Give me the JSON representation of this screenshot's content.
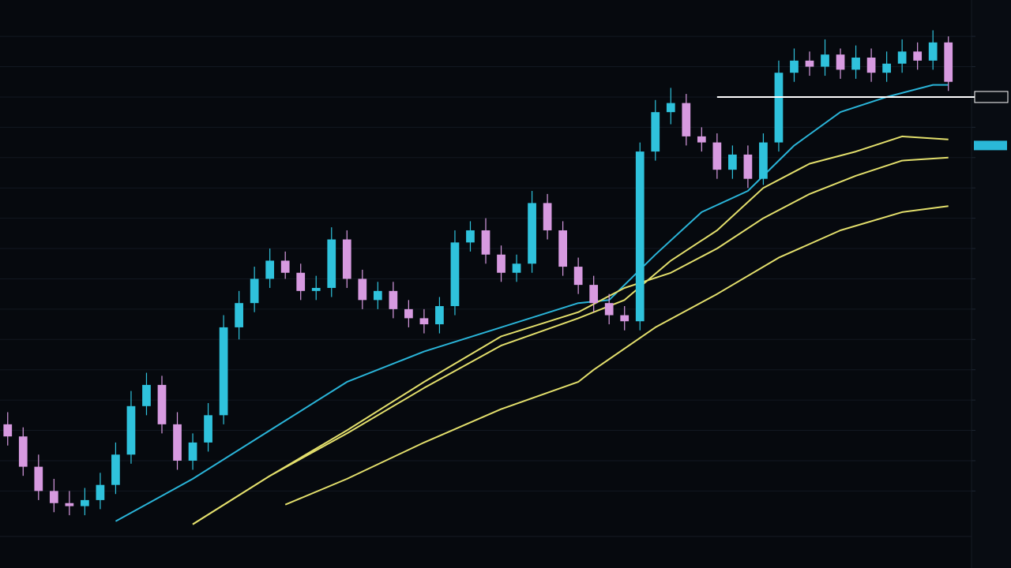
{
  "chart_data": {
    "type": "candlestick",
    "up_color": "#2fc2dc",
    "down_color": "#d79ae0",
    "grid": true,
    "xlim": [
      -0.5,
      62.5
    ],
    "ylim": [
      0.5,
      18.2
    ],
    "yticks": [
      2,
      3,
      4,
      5,
      6,
      7,
      8,
      9,
      10,
      11,
      12,
      13,
      14,
      15,
      16,
      17
    ],
    "open": [
      4.2,
      3.8,
      2.8,
      2.0,
      1.6,
      1.5,
      1.7,
      2.2,
      3.2,
      4.8,
      5.5,
      4.2,
      3.0,
      3.6,
      4.5,
      7.4,
      8.2,
      9.0,
      9.6,
      9.2,
      8.6,
      8.7,
      10.3,
      9.0,
      8.3,
      8.6,
      8.0,
      7.7,
      7.5,
      8.1,
      10.2,
      10.6,
      9.8,
      9.2,
      9.5,
      11.5,
      10.6,
      9.4,
      8.8,
      8.2,
      7.8,
      7.6,
      13.2,
      14.5,
      14.8,
      13.7,
      13.5,
      12.6,
      13.1,
      12.3,
      13.5,
      15.8,
      16.2,
      16.0,
      16.4,
      15.9,
      16.3,
      15.8,
      16.1,
      16.5,
      16.2,
      16.8
    ],
    "high": [
      4.6,
      4.1,
      3.2,
      2.4,
      2.0,
      2.1,
      2.6,
      3.6,
      5.3,
      5.9,
      5.8,
      4.6,
      3.9,
      4.9,
      7.8,
      8.6,
      9.4,
      10.0,
      9.9,
      9.5,
      9.1,
      10.7,
      10.6,
      9.3,
      8.9,
      8.9,
      8.3,
      8.0,
      8.4,
      10.6,
      10.9,
      11.0,
      10.1,
      9.8,
      11.9,
      11.8,
      10.9,
      9.7,
      9.1,
      8.5,
      8.1,
      13.5,
      14.9,
      15.3,
      15.1,
      14.0,
      13.8,
      13.4,
      13.4,
      13.8,
      16.2,
      16.6,
      16.5,
      16.9,
      16.6,
      16.7,
      16.6,
      16.5,
      16.9,
      16.8,
      17.2,
      17.0
    ],
    "low": [
      3.5,
      2.5,
      1.7,
      1.3,
      1.2,
      1.2,
      1.4,
      1.9,
      2.9,
      4.5,
      3.9,
      2.7,
      2.7,
      3.3,
      4.2,
      7.0,
      7.9,
      8.7,
      9.0,
      8.3,
      8.3,
      8.4,
      8.7,
      8.0,
      8.0,
      7.7,
      7.4,
      7.2,
      7.2,
      7.8,
      9.9,
      9.5,
      8.9,
      8.9,
      9.2,
      10.3,
      9.1,
      8.5,
      7.9,
      7.5,
      7.3,
      7.3,
      12.9,
      14.1,
      13.4,
      13.2,
      12.3,
      12.3,
      12.0,
      12.1,
      13.2,
      15.5,
      15.7,
      15.7,
      15.6,
      15.6,
      15.5,
      15.5,
      15.8,
      15.9,
      15.9,
      15.2
    ],
    "close": [
      3.8,
      2.8,
      2.0,
      1.6,
      1.5,
      1.7,
      2.2,
      3.2,
      4.8,
      5.5,
      4.2,
      3.0,
      3.6,
      4.5,
      7.4,
      8.2,
      9.0,
      9.6,
      9.2,
      8.6,
      8.7,
      10.3,
      9.0,
      8.3,
      8.6,
      8.0,
      7.7,
      7.5,
      8.1,
      10.2,
      10.6,
      9.8,
      9.2,
      9.5,
      11.5,
      10.6,
      9.4,
      8.8,
      8.2,
      7.8,
      7.6,
      13.2,
      14.5,
      14.8,
      13.7,
      13.5,
      12.6,
      13.1,
      12.3,
      13.5,
      15.8,
      16.2,
      16.0,
      16.4,
      15.9,
      16.3,
      15.8,
      16.1,
      16.5,
      16.2,
      16.8,
      15.5
    ],
    "lines": [
      {
        "color": "#2ab4d8",
        "x": [
          7,
          12,
          17,
          22,
          27,
          32,
          37,
          39,
          42,
          45,
          48,
          51,
          54,
          57,
          60,
          61
        ],
        "values": [
          1.0,
          2.4,
          4.0,
          5.6,
          6.6,
          7.4,
          8.2,
          8.3,
          9.8,
          11.2,
          11.9,
          13.4,
          14.5,
          15.0,
          15.4,
          15.4
        ]
      },
      {
        "color": "#e3df6c",
        "x": [
          12,
          17,
          22,
          27,
          32,
          37,
          40,
          43,
          46,
          49,
          52,
          55,
          58,
          61
        ],
        "values": [
          0.9,
          2.5,
          3.9,
          5.4,
          6.8,
          7.7,
          8.3,
          9.6,
          10.6,
          12.0,
          12.8,
          13.2,
          13.7,
          13.6
        ]
      },
      {
        "color": "#e3df6c",
        "x": [
          12,
          17,
          22,
          27,
          32,
          37,
          40,
          43,
          46,
          49,
          52,
          55,
          58,
          61
        ],
        "values": [
          0.9,
          2.5,
          4.0,
          5.6,
          7.1,
          7.9,
          8.7,
          9.2,
          10.0,
          11.0,
          11.8,
          12.4,
          12.9,
          13.0
        ]
      },
      {
        "color": "#e3df6c",
        "x": [
          18,
          22,
          27,
          32,
          37,
          38,
          42,
          46,
          50,
          54,
          58,
          61
        ],
        "values": [
          1.55,
          2.4,
          3.6,
          4.7,
          5.6,
          6.0,
          7.4,
          8.5,
          9.7,
          10.6,
          11.2,
          11.4
        ]
      }
    ],
    "hline": {
      "value": 15.0,
      "color": "#ffffff",
      "from_x": 46
    },
    "price_tag": {
      "value": 13.4,
      "color": "#2ab8d8"
    }
  }
}
